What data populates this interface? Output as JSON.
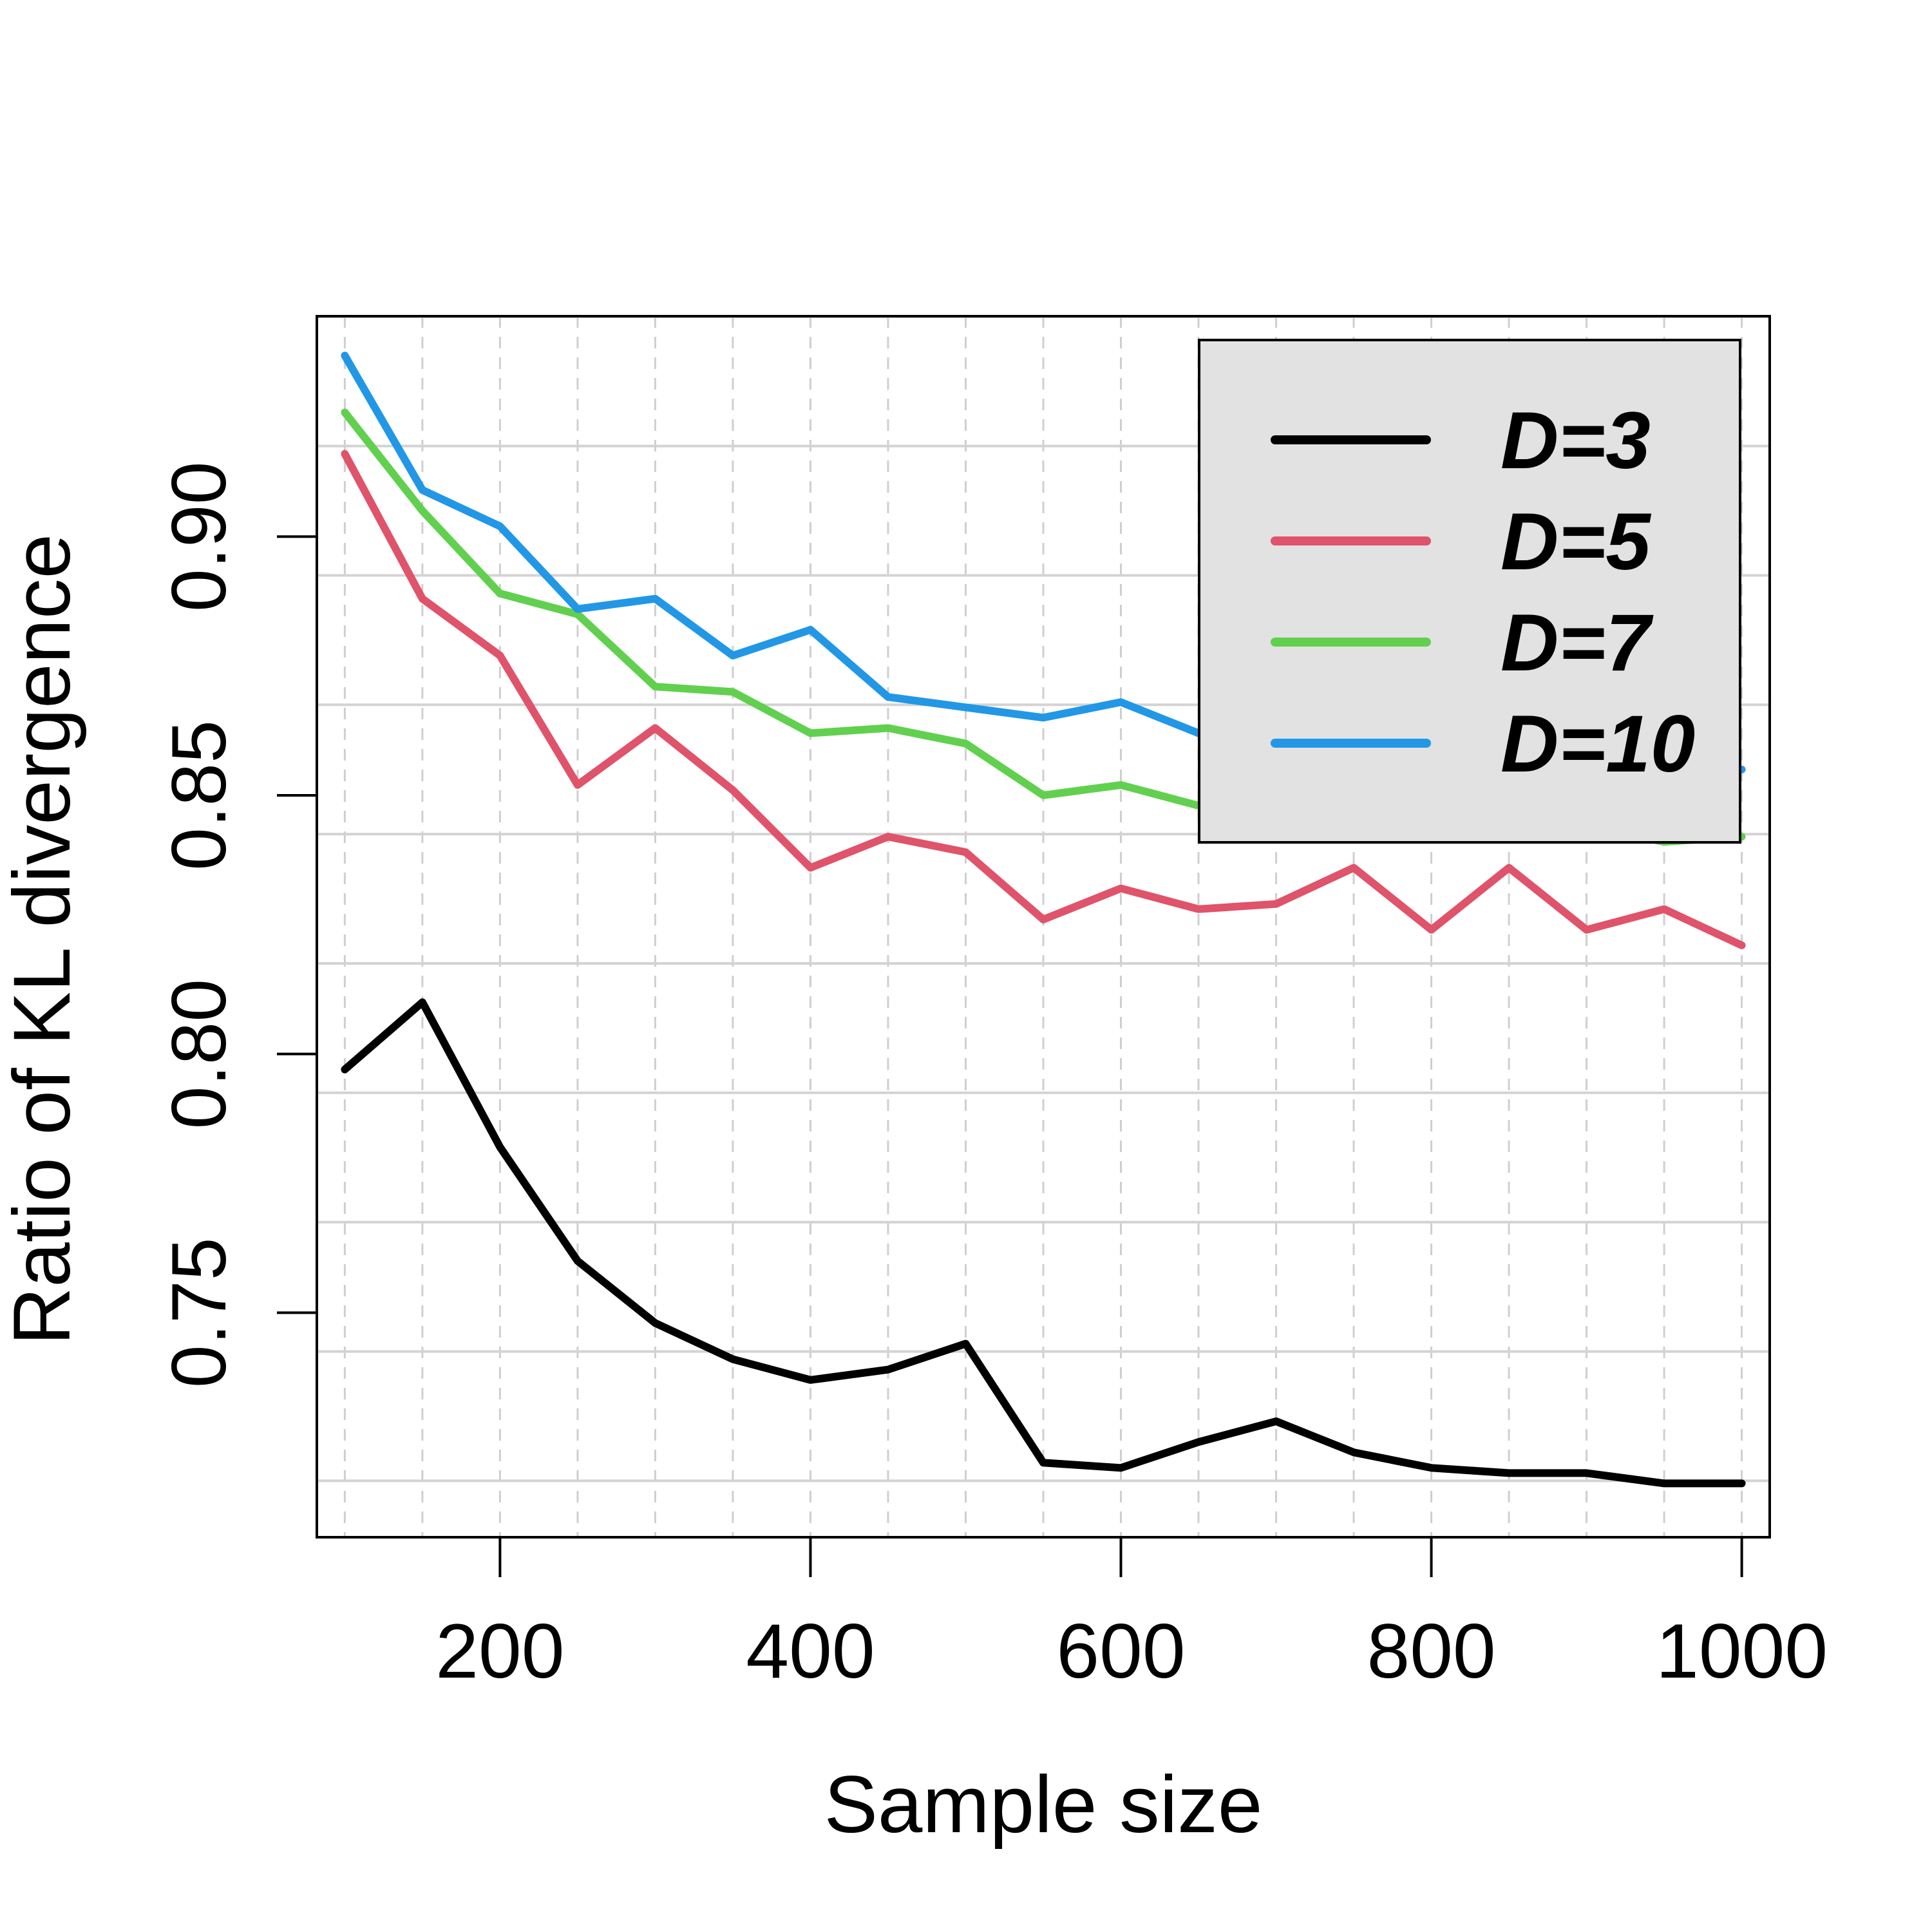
{
  "chart_data": {
    "type": "line",
    "title": "",
    "xlabel": "Sample size",
    "ylabel": "Ratio of KL divergence",
    "xlim": [
      82,
      1018
    ],
    "ylim": [
      0.7066,
      0.9426
    ],
    "x_ticks": [
      200,
      400,
      600,
      800,
      1000
    ],
    "x_tick_labels": [
      "200",
      "400",
      "600",
      "800",
      "1000"
    ],
    "y_ticks": [
      0.75,
      0.8,
      0.85,
      0.9
    ],
    "y_tick_labels": [
      "0.75",
      "0.80",
      "0.85",
      "0.90"
    ],
    "grid": true,
    "legend_position": "top-right",
    "x": [
      100,
      150,
      200,
      250,
      300,
      350,
      400,
      450,
      500,
      550,
      600,
      650,
      700,
      750,
      800,
      850,
      900,
      950,
      1000
    ],
    "series": [
      {
        "name": "D=3",
        "color": "#000000",
        "values": [
          0.797,
          0.81,
          0.782,
          0.76,
          0.748,
          0.741,
          0.737,
          0.739,
          0.744,
          0.721,
          0.72,
          0.725,
          0.729,
          0.723,
          0.72,
          0.719,
          0.719,
          0.717,
          0.717
        ]
      },
      {
        "name": "D=5",
        "color": "#DF536B",
        "values": [
          0.916,
          0.888,
          0.877,
          0.852,
          0.863,
          0.851,
          0.836,
          0.842,
          0.839,
          0.826,
          0.832,
          0.828,
          0.829,
          0.836,
          0.824,
          0.836,
          0.824,
          0.828,
          0.821
        ]
      },
      {
        "name": "D=7",
        "color": "#61D04F",
        "values": [
          0.924,
          0.905,
          0.889,
          0.885,
          0.871,
          0.87,
          0.862,
          0.863,
          0.86,
          0.85,
          0.852,
          0.848,
          0.847,
          0.846,
          0.845,
          0.845,
          0.844,
          0.841,
          0.842
        ]
      },
      {
        "name": "D=10",
        "color": "#2297E6",
        "values": [
          0.935,
          0.909,
          0.902,
          0.886,
          0.888,
          0.877,
          0.882,
          0.869,
          0.867,
          0.865,
          0.868,
          0.862,
          0.861,
          0.86,
          0.859,
          0.858,
          0.857,
          0.856,
          0.855
        ]
      }
    ]
  }
}
